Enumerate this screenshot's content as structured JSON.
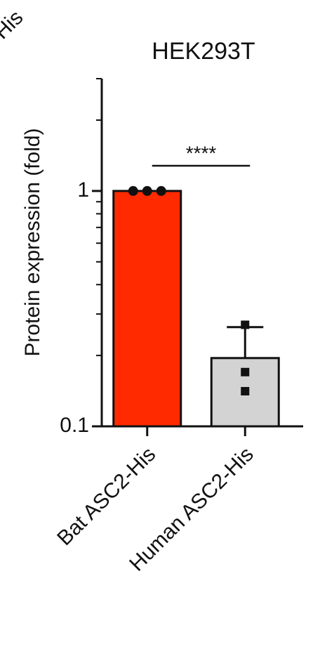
{
  "corner_text": "-His",
  "chart_data": {
    "type": "bar",
    "title": "HEK293T",
    "y_label": "Protein expression (fold)",
    "categories": [
      "Bat ASC2-His",
      "Human ASC2-His"
    ],
    "values": [
      1,
      0.195
    ],
    "errors": [
      null,
      0.069
    ],
    "points": [
      [
        1,
        1,
        1
      ],
      [
        0.27,
        0.17,
        0.141
      ]
    ],
    "point_shapes": [
      "circle",
      "square"
    ],
    "colors": [
      "#ff2a00",
      "#d3d3d3"
    ],
    "log_y": true,
    "ylim": [
      0.1,
      3
    ],
    "yticks": [
      0.1,
      1
    ],
    "minor_yticks": [
      0.2,
      0.3,
      0.4,
      0.5,
      0.6,
      0.7,
      0.8,
      0.9,
      2,
      3
    ],
    "annotations": [
      {
        "text": "****",
        "from": 0,
        "to": 1
      }
    ]
  }
}
